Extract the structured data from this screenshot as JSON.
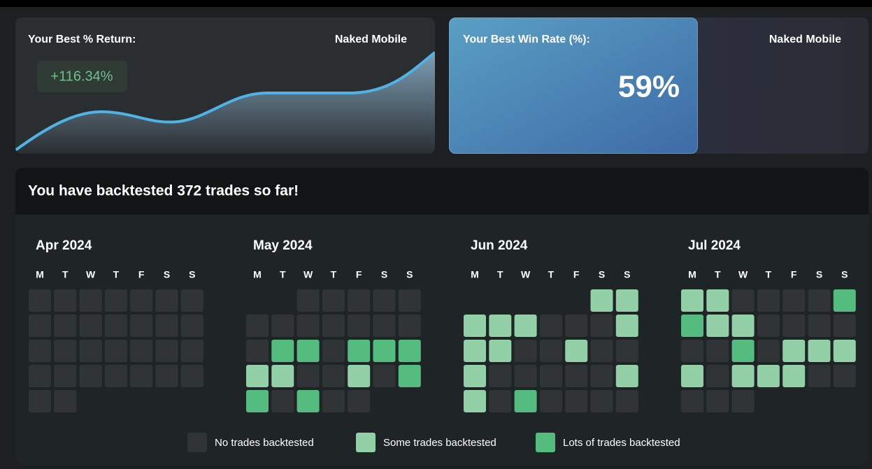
{
  "return_card": {
    "title": "Your Best % Return:",
    "strategy": "Naked Mobile",
    "value": "+116.34%"
  },
  "winrate_card": {
    "title": "Your Best Win Rate (%):",
    "strategy": "Naked Mobile",
    "value": "59%"
  },
  "calendar": {
    "title": "You have backtested 372 trades so far!",
    "months": [
      {
        "title": "Apr 2024",
        "days": [
          "M",
          "T",
          "W",
          "T",
          "F",
          "S",
          "S"
        ],
        "weeks": [
          [
            0,
            0,
            0,
            0,
            0,
            0,
            0
          ],
          [
            0,
            0,
            0,
            0,
            0,
            0,
            0
          ],
          [
            0,
            0,
            0,
            0,
            0,
            0,
            0
          ],
          [
            0,
            0,
            0,
            0,
            0,
            0,
            0
          ],
          [
            0,
            0,
            null,
            null,
            null,
            null,
            null
          ]
        ]
      },
      {
        "title": "May 2024",
        "days": [
          "M",
          "T",
          "W",
          "T",
          "F",
          "S",
          "S"
        ],
        "weeks": [
          [
            null,
            null,
            0,
            0,
            0,
            0,
            0
          ],
          [
            0,
            0,
            0,
            0,
            0,
            0,
            0
          ],
          [
            0,
            2,
            2,
            0,
            2,
            2,
            2
          ],
          [
            1,
            1,
            0,
            0,
            1,
            0,
            2
          ],
          [
            2,
            0,
            2,
            0,
            0,
            null,
            null
          ]
        ]
      },
      {
        "title": "Jun 2024",
        "days": [
          "M",
          "T",
          "W",
          "T",
          "F",
          "S",
          "S"
        ],
        "weeks": [
          [
            null,
            null,
            null,
            null,
            null,
            1,
            1
          ],
          [
            1,
            1,
            1,
            0,
            0,
            0,
            1
          ],
          [
            1,
            1,
            0,
            0,
            1,
            0,
            0
          ],
          [
            1,
            0,
            0,
            0,
            0,
            0,
            1
          ],
          [
            1,
            0,
            2,
            0,
            0,
            0,
            0
          ]
        ]
      },
      {
        "title": "Jul 2024",
        "days": [
          "M",
          "T",
          "W",
          "T",
          "F",
          "S",
          "S"
        ],
        "weeks": [
          [
            1,
            1,
            0,
            0,
            0,
            0,
            2
          ],
          [
            2,
            1,
            1,
            0,
            0,
            0,
            0
          ],
          [
            0,
            0,
            2,
            0,
            1,
            1,
            1
          ],
          [
            1,
            0,
            1,
            1,
            1,
            0,
            0
          ],
          [
            0,
            0,
            0,
            null,
            null,
            null,
            null
          ]
        ]
      }
    ],
    "legend": [
      {
        "label": "No trades backtested",
        "color": "#313436"
      },
      {
        "label": "Some trades backtested",
        "color": "#93cfa7"
      },
      {
        "label": "Lots of trades backtested",
        "color": "#55bc7f"
      }
    ]
  }
}
